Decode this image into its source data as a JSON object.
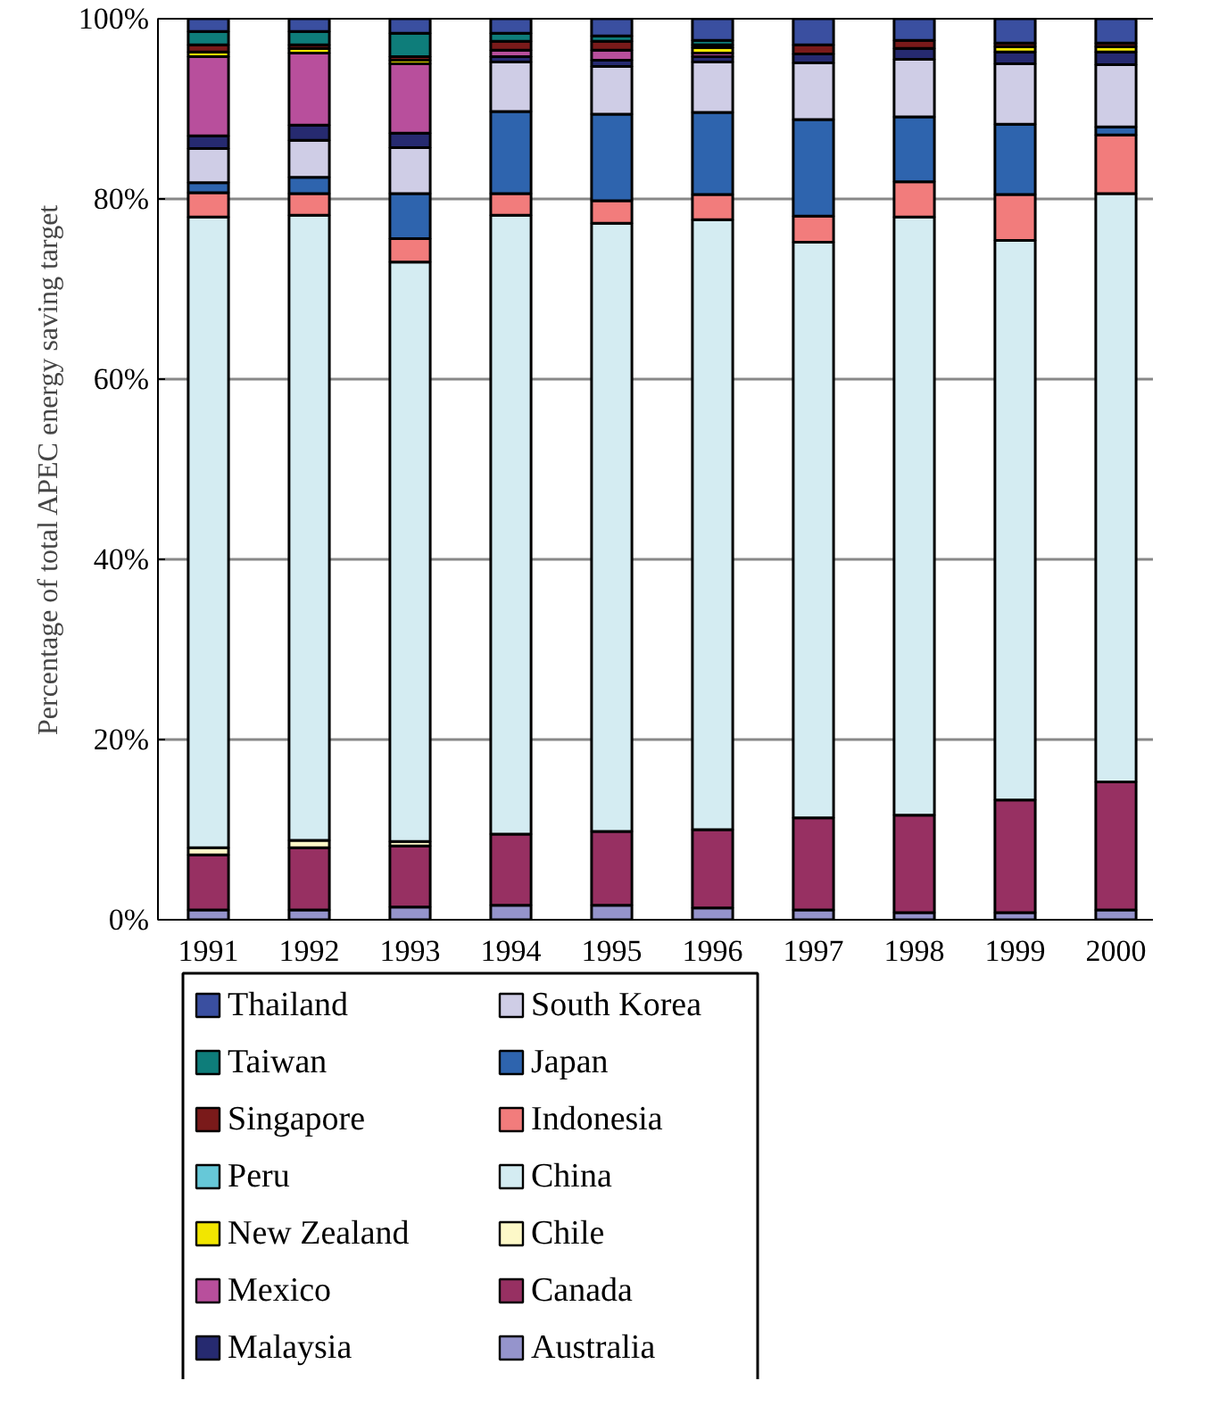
{
  "chart_data": {
    "type": "bar",
    "stacked": true,
    "ylabel": "Percentage of total APEC energy saving target",
    "categories": [
      "1991",
      "1992",
      "1993",
      "1994",
      "1995",
      "1996",
      "1997",
      "1998",
      "1999",
      "2000"
    ],
    "ylim": [
      0,
      100
    ],
    "yticks": [
      {
        "value": 0,
        "label": "0%"
      },
      {
        "value": 20,
        "label": "20%"
      },
      {
        "value": 40,
        "label": "40%"
      },
      {
        "value": 60,
        "label": "60%"
      },
      {
        "value": 80,
        "label": "80%"
      },
      {
        "value": 100,
        "label": "100%"
      }
    ],
    "grid": "y",
    "legend": "bottom",
    "series": [
      {
        "name": "Australia",
        "color": "#9594cc",
        "values": [
          1.1,
          1.1,
          1.4,
          1.6,
          1.6,
          1.3,
          1.1,
          0.8,
          0.8,
          1.1
        ]
      },
      {
        "name": "Canada",
        "color": "#973062",
        "values": [
          6.1,
          6.9,
          6.8,
          7.9,
          8.2,
          8.7,
          10.2,
          10.8,
          12.5,
          14.2
        ]
      },
      {
        "name": "Chile",
        "color": "#fdf8c8",
        "values": [
          0.8,
          0.8,
          0.5,
          null,
          null,
          null,
          null,
          null,
          null,
          null
        ]
      },
      {
        "name": "China",
        "color": "#d4ecf2",
        "values": [
          70.0,
          69.4,
          64.3,
          68.7,
          67.5,
          67.7,
          63.9,
          66.4,
          62.1,
          65.3
        ]
      },
      {
        "name": "Indonesia",
        "color": "#f27c7c",
        "values": [
          2.7,
          2.4,
          2.6,
          2.4,
          2.5,
          2.8,
          2.9,
          3.9,
          5.1,
          6.5
        ]
      },
      {
        "name": "Japan",
        "color": "#2e64ae",
        "values": [
          1.1,
          1.8,
          5.0,
          9.1,
          9.6,
          9.1,
          10.7,
          7.2,
          7.8,
          0.9
        ]
      },
      {
        "name": "South Korea",
        "color": "#cfcde6",
        "values": [
          3.8,
          4.1,
          5.1,
          5.5,
          5.3,
          5.6,
          6.3,
          6.4,
          6.7,
          6.9
        ]
      },
      {
        "name": "Malaysia",
        "color": "#262a70",
        "values": [
          1.4,
          1.7,
          1.6,
          0.6,
          0.7,
          0.6,
          1.0,
          1.2,
          1.3,
          1.4
        ]
      },
      {
        "name": "Mexico",
        "color": "#b84f9c",
        "values": [
          8.8,
          8.0,
          7.7,
          0.7,
          1.1,
          0.4,
          null,
          null,
          null,
          null
        ]
      },
      {
        "name": "New Zealand",
        "color": "#f2e600",
        "values": [
          0.5,
          0.5,
          0.4,
          null,
          null,
          0.6,
          null,
          null,
          0.6,
          0.6
        ]
      },
      {
        "name": "Peru",
        "color": "#66c8d8",
        "values": [
          null,
          null,
          null,
          null,
          null,
          null,
          null,
          null,
          null,
          null
        ]
      },
      {
        "name": "Singapore",
        "color": "#7a1a1a",
        "values": [
          0.8,
          0.4,
          0.4,
          1.0,
          1.0,
          0.3,
          1.0,
          0.9,
          0.4,
          0.4
        ]
      },
      {
        "name": "Taiwan",
        "color": "#0e7d7a",
        "values": [
          1.5,
          1.5,
          2.6,
          0.9,
          0.6,
          0.5,
          null,
          null,
          null,
          null
        ]
      },
      {
        "name": "Thailand",
        "color": "#3a4fa0",
        "values": [
          1.4,
          1.4,
          1.6,
          1.6,
          1.9,
          2.4,
          2.9,
          2.4,
          2.7,
          2.7
        ]
      }
    ]
  }
}
